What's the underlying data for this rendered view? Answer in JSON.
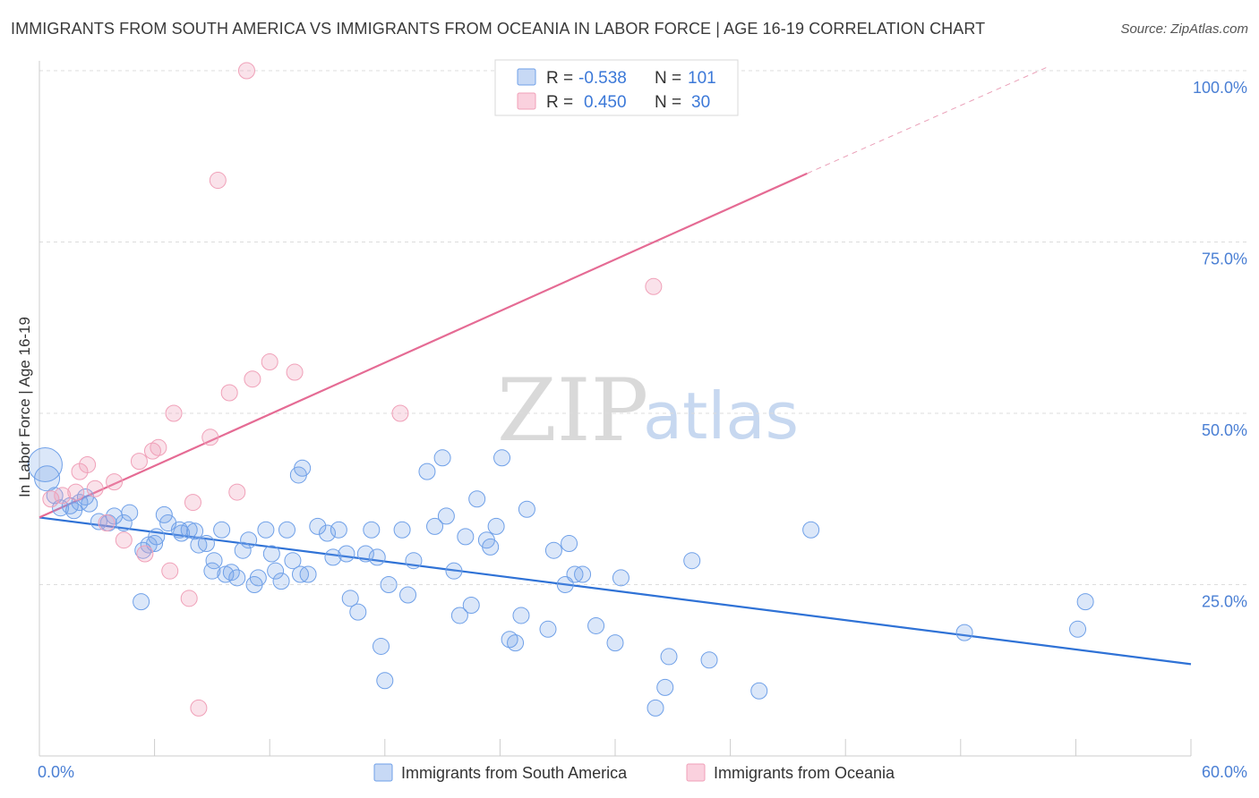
{
  "title": "IMMIGRANTS FROM SOUTH AMERICA VS IMMIGRANTS FROM OCEANIA IN LABOR FORCE | AGE 16-19 CORRELATION CHART",
  "source": "Source: ZipAtlas.com",
  "watermark": {
    "zip": "ZIP",
    "atlas": "atlas"
  },
  "legend_top": [
    {
      "r_label": "R =",
      "r_value": "-0.538",
      "n_label": "N =",
      "n_value": "101",
      "color": "#6fa0e8"
    },
    {
      "r_label": "R =",
      "r_value": "0.450",
      "n_label": "N =",
      "n_value": "30",
      "color": "#f0a0b8"
    }
  ],
  "legend_bottom": [
    {
      "label": "Immigrants from South America",
      "color": "#6fa0e8"
    },
    {
      "label": "Immigrants from Oceania",
      "color": "#f0a0b8"
    }
  ],
  "chart_data": {
    "type": "scatter",
    "xlabel": "",
    "ylabel": "In Labor Force | Age 16-19",
    "xlim": [
      0,
      60
    ],
    "ylim": [
      0,
      100
    ],
    "x_tick_labels": [
      "0.0%",
      "60.0%"
    ],
    "y_tick_labels": [
      "100.0%",
      "75.0%",
      "50.0%",
      "25.0%"
    ],
    "y_ticks": [
      100,
      75,
      50,
      25
    ],
    "grid": "horizontal dashed",
    "legend": "top-center",
    "series": [
      {
        "name": "Immigrants from South America",
        "color": "#6fa0e8",
        "trend": {
          "x0": 0,
          "y0": 34.8,
          "x1": 60,
          "y1": 13.4
        },
        "points": [
          [
            0.3,
            42.5
          ],
          [
            0.4,
            40.5
          ],
          [
            0.8,
            38.0
          ],
          [
            1.1,
            36.2
          ],
          [
            1.6,
            36.5
          ],
          [
            1.8,
            35.8
          ],
          [
            2.1,
            37.0
          ],
          [
            2.6,
            36.8
          ],
          [
            2.4,
            37.8
          ],
          [
            3.1,
            34.2
          ],
          [
            3.6,
            34.0
          ],
          [
            3.9,
            35.0
          ],
          [
            4.4,
            34.0
          ],
          [
            4.7,
            35.5
          ],
          [
            5.3,
            22.5
          ],
          [
            5.4,
            30.0
          ],
          [
            5.7,
            30.8
          ],
          [
            6.0,
            31.0
          ],
          [
            6.1,
            32.0
          ],
          [
            6.5,
            35.2
          ],
          [
            6.7,
            34.0
          ],
          [
            7.3,
            33.0
          ],
          [
            7.4,
            32.5
          ],
          [
            7.8,
            33.0
          ],
          [
            8.1,
            32.8
          ],
          [
            8.3,
            30.8
          ],
          [
            8.7,
            31.0
          ],
          [
            9.0,
            27.0
          ],
          [
            9.1,
            28.5
          ],
          [
            9.5,
            33.0
          ],
          [
            9.7,
            26.5
          ],
          [
            10.0,
            26.8
          ],
          [
            10.3,
            26.0
          ],
          [
            10.6,
            30.0
          ],
          [
            10.9,
            31.5
          ],
          [
            11.2,
            25.0
          ],
          [
            11.4,
            26.0
          ],
          [
            11.8,
            33.0
          ],
          [
            12.1,
            29.5
          ],
          [
            12.3,
            27.0
          ],
          [
            12.6,
            25.5
          ],
          [
            12.9,
            33.0
          ],
          [
            13.2,
            28.5
          ],
          [
            13.6,
            26.5
          ],
          [
            14.0,
            26.5
          ],
          [
            13.5,
            41.0
          ],
          [
            13.7,
            42.0
          ],
          [
            14.5,
            33.5
          ],
          [
            15.0,
            32.5
          ],
          [
            15.3,
            29.0
          ],
          [
            15.6,
            33.0
          ],
          [
            16.0,
            29.5
          ],
          [
            16.2,
            23.0
          ],
          [
            16.6,
            21.0
          ],
          [
            17.0,
            29.5
          ],
          [
            17.3,
            33.0
          ],
          [
            17.6,
            29.0
          ],
          [
            17.8,
            16.0
          ],
          [
            18.0,
            11.0
          ],
          [
            18.2,
            25.0
          ],
          [
            18.9,
            33.0
          ],
          [
            19.2,
            23.5
          ],
          [
            19.5,
            28.5
          ],
          [
            20.2,
            41.5
          ],
          [
            20.6,
            33.5
          ],
          [
            21.0,
            43.5
          ],
          [
            21.2,
            35.0
          ],
          [
            21.6,
            27.0
          ],
          [
            21.9,
            20.5
          ],
          [
            22.2,
            32.0
          ],
          [
            22.5,
            22.0
          ],
          [
            22.8,
            37.5
          ],
          [
            23.3,
            31.5
          ],
          [
            23.5,
            30.5
          ],
          [
            23.8,
            33.5
          ],
          [
            24.1,
            43.5
          ],
          [
            24.5,
            17.0
          ],
          [
            24.8,
            16.5
          ],
          [
            25.1,
            20.5
          ],
          [
            25.4,
            36.0
          ],
          [
            26.5,
            18.5
          ],
          [
            26.8,
            30.0
          ],
          [
            27.4,
            25.0
          ],
          [
            27.6,
            31.0
          ],
          [
            27.9,
            26.5
          ],
          [
            28.3,
            26.5
          ],
          [
            29.0,
            19.0
          ],
          [
            30.0,
            16.5
          ],
          [
            30.3,
            26.0
          ],
          [
            32.1,
            7.0
          ],
          [
            32.6,
            10.0
          ],
          [
            32.8,
            14.5
          ],
          [
            34.0,
            28.5
          ],
          [
            34.9,
            14.0
          ],
          [
            37.5,
            9.5
          ],
          [
            40.2,
            33.0
          ],
          [
            48.2,
            18.0
          ],
          [
            54.1,
            18.5
          ],
          [
            54.5,
            22.5
          ]
        ]
      },
      {
        "name": "Immigrants from Oceania",
        "color": "#f0a0b8",
        "trend": {
          "x0": 0,
          "y0": 34.8,
          "x1": 40.0,
          "y1": 85.0
        },
        "trend_dashed": {
          "x0": 40.0,
          "y0": 85.0,
          "x1": 52.5,
          "y1": 100.5
        },
        "points": [
          [
            0.6,
            37.5
          ],
          [
            1.2,
            38.0
          ],
          [
            1.9,
            38.5
          ],
          [
            2.1,
            41.5
          ],
          [
            2.5,
            42.5
          ],
          [
            2.9,
            39.0
          ],
          [
            3.5,
            34.0
          ],
          [
            3.9,
            40.0
          ],
          [
            4.4,
            31.5
          ],
          [
            5.2,
            43.0
          ],
          [
            5.5,
            29.5
          ],
          [
            5.9,
            44.5
          ],
          [
            6.2,
            45.0
          ],
          [
            6.8,
            27.0
          ],
          [
            7.0,
            50.0
          ],
          [
            7.8,
            23.0
          ],
          [
            8.0,
            37.0
          ],
          [
            8.3,
            7.0
          ],
          [
            8.9,
            46.5
          ],
          [
            9.3,
            84.0
          ],
          [
            9.9,
            53.0
          ],
          [
            10.3,
            38.5
          ],
          [
            10.8,
            100.0
          ],
          [
            11.1,
            55.0
          ],
          [
            12.0,
            57.5
          ],
          [
            13.3,
            56.0
          ],
          [
            18.8,
            50.0
          ],
          [
            32.0,
            68.5
          ]
        ]
      }
    ]
  }
}
